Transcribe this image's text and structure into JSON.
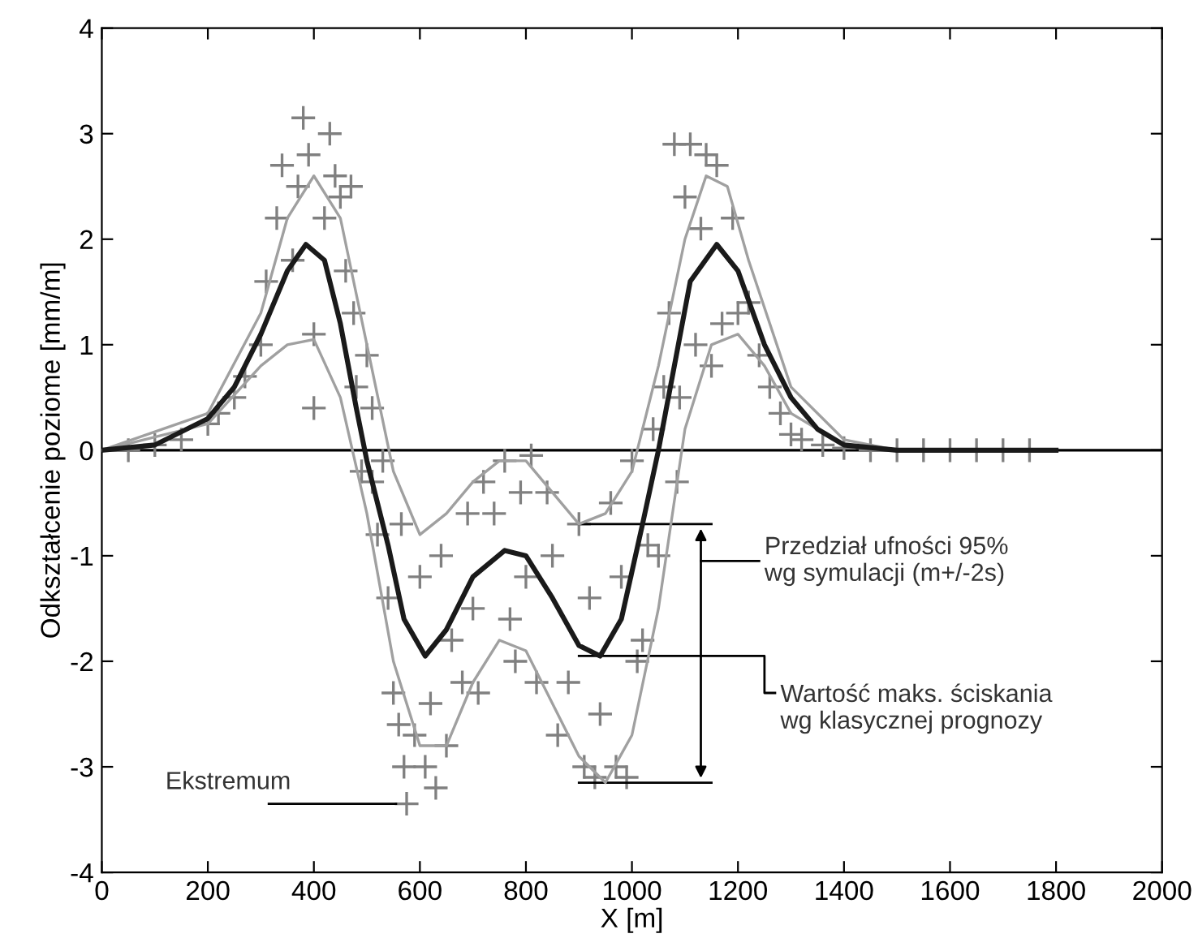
{
  "chart_data": {
    "type": "scatter",
    "xlabel": "X [m]",
    "ylabel": "Odkształcenie poziome [mm/m]",
    "xlim": [
      0,
      2000
    ],
    "xticks": [
      0,
      200,
      400,
      600,
      800,
      1000,
      1200,
      1400,
      1600,
      1800,
      2000
    ],
    "ylim": [
      -4,
      4
    ],
    "yticks": [
      -4,
      -3,
      -2,
      -1,
      0,
      1,
      2,
      3,
      4
    ],
    "grid": false,
    "legend": false,
    "ref_lines": [
      {
        "axis": "y",
        "value": 0,
        "color": "#000000"
      }
    ],
    "annotations": [
      "Przedział ufności 95%\nwg symulacji (m+/-2s)",
      "Wartość maks. ściskania\nwg klasycznej prognozy",
      {
        "text": "Ekstremum",
        "x": 575,
        "y": -3.35
      }
    ],
    "series": [
      {
        "marker": "cross",
        "color": "#808080",
        "x": [
          50,
          100,
          150,
          200,
          220,
          250,
          270,
          300,
          310,
          330,
          340,
          360,
          370,
          380,
          390,
          400,
          400,
          420,
          430,
          440,
          450,
          460,
          470,
          475,
          480,
          490,
          500,
          510,
          510,
          520,
          530,
          540,
          550,
          560,
          565,
          570,
          575,
          590,
          600,
          610,
          620,
          630,
          640,
          650,
          660,
          680,
          690,
          700,
          710,
          720,
          740,
          760,
          770,
          780,
          790,
          800,
          810,
          820,
          840,
          850,
          860,
          880,
          900,
          910,
          920,
          930,
          940,
          960,
          970,
          980,
          990,
          1000,
          1010,
          1020,
          1030,
          1040,
          1050,
          1060,
          1070,
          1080,
          1085,
          1090,
          1100,
          1110,
          1120,
          1130,
          1140,
          1150,
          1160,
          1170,
          1190,
          1200,
          1220,
          1240,
          1260,
          1280,
          1300,
          1320,
          1360,
          1400,
          1450,
          1500,
          1550,
          1600,
          1650,
          1700,
          1750
        ],
        "values": [
          0,
          0.05,
          0.1,
          0.25,
          0.35,
          0.5,
          0.7,
          1.0,
          1.6,
          2.2,
          2.7,
          1.8,
          2.5,
          3.15,
          2.8,
          1.1,
          0.4,
          2.2,
          3.0,
          2.6,
          2.4,
          1.7,
          2.5,
          1.3,
          0.6,
          -0.2,
          0.9,
          0.4,
          -0.3,
          -0.8,
          -0.1,
          -1.4,
          -2.3,
          -2.6,
          -0.7,
          -3.0,
          -3.35,
          -2.7,
          -1.2,
          -3.0,
          -2.4,
          -3.2,
          -1.0,
          -2.8,
          -1.8,
          -2.2,
          -0.6,
          -1.5,
          -2.3,
          -0.3,
          -0.6,
          -0.1,
          -1.6,
          -2.0,
          -0.4,
          -1.2,
          -0.05,
          -2.2,
          -0.4,
          -1.0,
          -2.7,
          -2.2,
          -0.7,
          -3.0,
          -1.4,
          -3.1,
          -2.5,
          -0.5,
          -3.0,
          -1.2,
          -3.1,
          -0.1,
          -2.0,
          -1.8,
          -0.9,
          0.2,
          -1.0,
          0.6,
          1.3,
          2.9,
          -0.3,
          0.5,
          2.4,
          2.9,
          1.0,
          2.1,
          2.8,
          0.8,
          2.7,
          1.2,
          2.2,
          1.3,
          1.4,
          0.9,
          0.6,
          0.35,
          0.15,
          0.1,
          0.05,
          0.02,
          0,
          0,
          0,
          0,
          0,
          0,
          0
        ]
      },
      {
        "type": "line",
        "color": "#a0a0a0",
        "x": [
          0,
          200,
          300,
          350,
          400,
          450,
          500,
          550,
          600,
          650,
          700,
          750,
          800,
          850,
          900,
          950,
          1000,
          1050,
          1100,
          1140,
          1180,
          1220,
          1300,
          1400,
          1500
        ],
        "values": [
          0,
          0.35,
          1.3,
          2.2,
          2.6,
          2.2,
          1.0,
          -0.2,
          -0.8,
          -0.6,
          -0.3,
          -0.1,
          -0.1,
          -0.4,
          -0.7,
          -0.6,
          -0.2,
          0.8,
          2.0,
          2.6,
          2.5,
          1.8,
          0.6,
          0.1,
          0
        ]
      },
      {
        "type": "line",
        "color": "#a0a0a0",
        "x": [
          0,
          200,
          300,
          350,
          400,
          450,
          500,
          550,
          600,
          650,
          700,
          750,
          800,
          850,
          900,
          950,
          1000,
          1050,
          1100,
          1150,
          1200,
          1250,
          1300,
          1400,
          1500
        ],
        "values": [
          0,
          0.25,
          0.8,
          1.0,
          1.05,
          0.5,
          -0.6,
          -2.0,
          -2.8,
          -2.8,
          -2.2,
          -1.8,
          -1.9,
          -2.4,
          -2.9,
          -3.15,
          -2.7,
          -1.5,
          0.2,
          1.0,
          1.1,
          0.8,
          0.35,
          0.05,
          0
        ]
      },
      {
        "type": "line",
        "color": "#1a1a1a",
        "x": [
          0,
          100,
          200,
          250,
          300,
          350,
          385,
          420,
          450,
          480,
          500,
          540,
          570,
          610,
          650,
          700,
          760,
          800,
          850,
          900,
          940,
          980,
          1020,
          1050,
          1080,
          1110,
          1160,
          1200,
          1250,
          1300,
          1350,
          1400,
          1500,
          1800
        ],
        "values": [
          0,
          0.05,
          0.3,
          0.6,
          1.1,
          1.7,
          1.95,
          1.8,
          1.2,
          0.4,
          -0.1,
          -0.9,
          -1.6,
          -1.95,
          -1.7,
          -1.2,
          -0.95,
          -1.0,
          -1.4,
          -1.85,
          -1.95,
          -1.6,
          -0.7,
          0.0,
          0.8,
          1.6,
          1.95,
          1.7,
          1.0,
          0.5,
          0.2,
          0.05,
          0,
          0
        ]
      }
    ]
  }
}
